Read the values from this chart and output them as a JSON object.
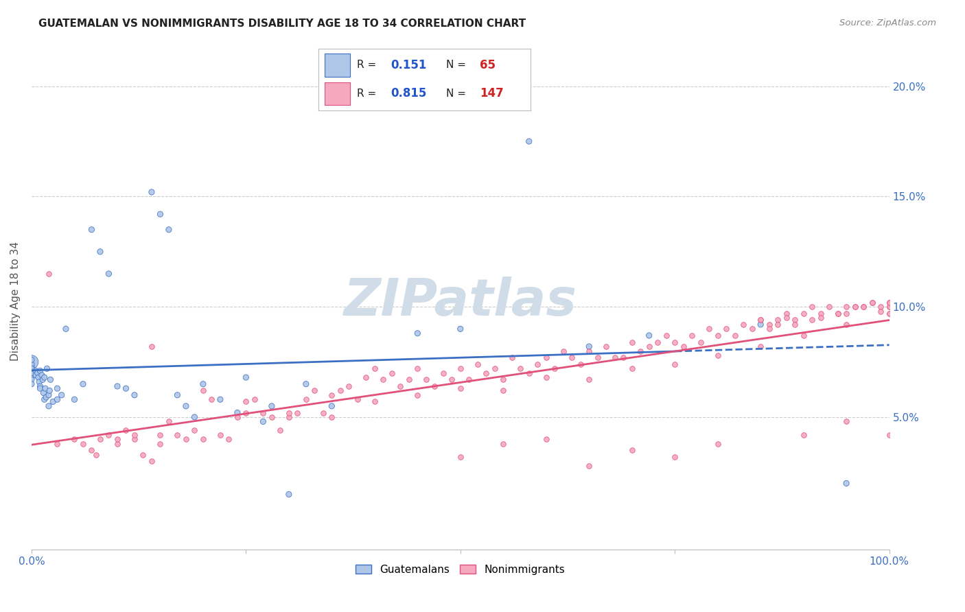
{
  "title": "GUATEMALAN VS NONIMMIGRANTS DISABILITY AGE 18 TO 34 CORRELATION CHART",
  "source": "Source: ZipAtlas.com",
  "ylabel": "Disability Age 18 to 34",
  "xlim": [
    0.0,
    1.0
  ],
  "ylim": [
    -0.01,
    0.215
  ],
  "background_color": "#ffffff",
  "grid_color": "#cccccc",
  "guatemalans_color": "#aec6e8",
  "nonimmigrants_color": "#f5a8c0",
  "guatemalans_line_color": "#3a6fc4",
  "nonimmigrants_line_color": "#e0507a",
  "legend_R_color": "#2255cc",
  "legend_N_color": "#cc2222",
  "watermark_color": "#d0dde8",
  "R_guatemalans": "0.151",
  "N_guatemalans": "65",
  "R_nonimmigrants": "0.815",
  "N_nonimmigrants": "147",
  "guate_x": [
    0.0,
    0.0,
    0.0,
    0.0,
    0.0,
    0.0,
    0.0,
    0.0,
    0.0,
    0.0,
    0.005,
    0.005,
    0.007,
    0.008,
    0.009,
    0.01,
    0.01,
    0.01,
    0.012,
    0.013,
    0.014,
    0.015,
    0.015,
    0.016,
    0.017,
    0.018,
    0.02,
    0.02,
    0.021,
    0.022,
    0.025,
    0.03,
    0.03,
    0.035,
    0.04,
    0.05,
    0.06,
    0.07,
    0.08,
    0.09,
    0.1,
    0.11,
    0.12,
    0.14,
    0.15,
    0.16,
    0.17,
    0.18,
    0.19,
    0.2,
    0.22,
    0.24,
    0.25,
    0.27,
    0.28,
    0.3,
    0.32,
    0.35,
    0.45,
    0.5,
    0.58,
    0.65,
    0.72,
    0.85,
    0.95
  ],
  "guate_y": [
    0.075,
    0.073,
    0.071,
    0.068,
    0.074,
    0.07,
    0.067,
    0.072,
    0.065,
    0.076,
    0.071,
    0.069,
    0.07,
    0.068,
    0.066,
    0.064,
    0.071,
    0.063,
    0.069,
    0.067,
    0.061,
    0.068,
    0.058,
    0.063,
    0.059,
    0.072,
    0.06,
    0.055,
    0.062,
    0.067,
    0.057,
    0.058,
    0.063,
    0.06,
    0.09,
    0.058,
    0.065,
    0.135,
    0.125,
    0.115,
    0.064,
    0.063,
    0.06,
    0.152,
    0.142,
    0.135,
    0.06,
    0.055,
    0.05,
    0.065,
    0.058,
    0.052,
    0.068,
    0.048,
    0.055,
    0.015,
    0.065,
    0.055,
    0.088,
    0.09,
    0.175,
    0.082,
    0.087,
    0.092,
    0.02
  ],
  "guate_sizes": [
    200,
    35,
    35,
    35,
    35,
    35,
    35,
    35,
    35,
    35,
    35,
    35,
    35,
    35,
    35,
    35,
    35,
    35,
    35,
    35,
    35,
    35,
    35,
    35,
    35,
    35,
    35,
    35,
    35,
    35,
    35,
    35,
    35,
    35,
    35,
    35,
    35,
    35,
    35,
    35,
    35,
    35,
    35,
    35,
    35,
    35,
    35,
    35,
    35,
    35,
    35,
    35,
    35,
    35,
    35,
    35,
    35,
    35,
    35,
    35,
    35,
    35,
    35,
    35,
    35
  ],
  "nonimm_x": [
    0.02,
    0.03,
    0.05,
    0.06,
    0.07,
    0.075,
    0.08,
    0.09,
    0.1,
    0.11,
    0.12,
    0.13,
    0.14,
    0.14,
    0.15,
    0.16,
    0.17,
    0.18,
    0.19,
    0.2,
    0.21,
    0.22,
    0.23,
    0.24,
    0.25,
    0.26,
    0.27,
    0.28,
    0.29,
    0.3,
    0.31,
    0.32,
    0.33,
    0.34,
    0.35,
    0.36,
    0.37,
    0.38,
    0.39,
    0.4,
    0.41,
    0.42,
    0.43,
    0.44,
    0.45,
    0.46,
    0.47,
    0.48,
    0.49,
    0.5,
    0.51,
    0.52,
    0.53,
    0.54,
    0.55,
    0.56,
    0.57,
    0.58,
    0.59,
    0.6,
    0.61,
    0.62,
    0.63,
    0.64,
    0.65,
    0.66,
    0.67,
    0.68,
    0.69,
    0.7,
    0.71,
    0.72,
    0.73,
    0.74,
    0.75,
    0.76,
    0.77,
    0.78,
    0.79,
    0.8,
    0.81,
    0.82,
    0.83,
    0.84,
    0.85,
    0.86,
    0.87,
    0.88,
    0.89,
    0.9,
    0.91,
    0.92,
    0.93,
    0.94,
    0.95,
    0.96,
    0.97,
    0.98,
    0.99,
    1.0,
    1.0,
    1.0,
    0.55,
    0.2,
    0.25,
    0.3,
    0.35,
    0.4,
    0.45,
    0.5,
    0.55,
    0.6,
    0.65,
    0.7,
    0.75,
    0.8,
    0.85,
    0.9,
    0.95,
    1.0,
    0.15,
    0.1,
    0.12,
    0.5,
    0.6,
    0.65,
    0.7,
    0.75,
    0.8,
    0.9,
    0.95,
    1.0,
    1.0,
    1.0,
    1.0,
    0.95,
    0.97,
    0.98,
    0.99,
    0.96,
    0.94,
    0.92,
    0.91,
    0.89,
    0.88,
    0.87,
    0.86,
    0.85
  ],
  "nonimm_y": [
    0.115,
    0.038,
    0.04,
    0.038,
    0.035,
    0.033,
    0.04,
    0.042,
    0.038,
    0.044,
    0.04,
    0.033,
    0.03,
    0.082,
    0.038,
    0.048,
    0.042,
    0.04,
    0.044,
    0.04,
    0.058,
    0.042,
    0.04,
    0.05,
    0.052,
    0.058,
    0.052,
    0.05,
    0.044,
    0.05,
    0.052,
    0.058,
    0.062,
    0.052,
    0.06,
    0.062,
    0.064,
    0.058,
    0.068,
    0.072,
    0.067,
    0.07,
    0.064,
    0.067,
    0.072,
    0.067,
    0.064,
    0.07,
    0.067,
    0.072,
    0.067,
    0.074,
    0.07,
    0.072,
    0.067,
    0.077,
    0.072,
    0.07,
    0.074,
    0.077,
    0.072,
    0.08,
    0.077,
    0.074,
    0.08,
    0.077,
    0.082,
    0.077,
    0.077,
    0.084,
    0.08,
    0.082,
    0.084,
    0.087,
    0.084,
    0.082,
    0.087,
    0.084,
    0.09,
    0.087,
    0.09,
    0.087,
    0.092,
    0.09,
    0.094,
    0.092,
    0.094,
    0.097,
    0.094,
    0.097,
    0.1,
    0.097,
    0.1,
    0.097,
    0.1,
    0.1,
    0.1,
    0.102,
    0.1,
    0.102,
    0.1,
    0.102,
    0.038,
    0.062,
    0.057,
    0.052,
    0.05,
    0.057,
    0.06,
    0.063,
    0.062,
    0.068,
    0.067,
    0.072,
    0.074,
    0.078,
    0.082,
    0.087,
    0.092,
    0.097,
    0.042,
    0.04,
    0.042,
    0.032,
    0.04,
    0.028,
    0.035,
    0.032,
    0.038,
    0.042,
    0.048,
    0.042,
    0.1,
    0.102,
    0.097,
    0.097,
    0.1,
    0.102,
    0.098,
    0.1,
    0.097,
    0.095,
    0.094,
    0.092,
    0.095,
    0.092,
    0.09,
    0.094
  ]
}
